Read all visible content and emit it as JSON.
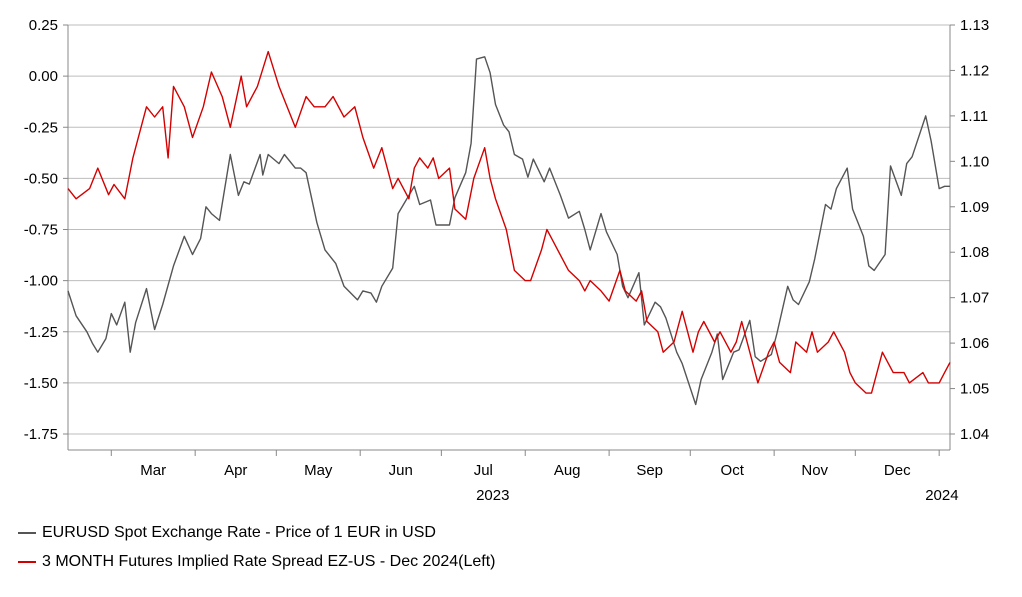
{
  "chart_data": {
    "type": "line",
    "title": "",
    "grid": true,
    "legend_placement": "bottom-left",
    "x_axis": {
      "months": [
        "Mar",
        "Apr",
        "May",
        "Jun",
        "Jul",
        "Aug",
        "Sep",
        "Oct",
        "Nov",
        "Dec"
      ],
      "year_labels": [
        "2023",
        "2024"
      ],
      "range": [
        "2023-02-13",
        "2024-01-05"
      ]
    },
    "y_left": {
      "ylim": [
        -1.75,
        0.25
      ],
      "ticks": [
        "0.25",
        "0.00",
        "-0.25",
        "-0.50",
        "-0.75",
        "-1.00",
        "-1.25",
        "-1.50",
        "-1.75"
      ]
    },
    "y_right": {
      "ylim": [
        1.04,
        1.13
      ],
      "ticks": [
        "1.13",
        "1.12",
        "1.11",
        "1.10",
        "1.09",
        "1.08",
        "1.07",
        "1.06",
        "1.05",
        "1.04"
      ]
    },
    "series": [
      {
        "name": "EURUSD Spot Exchange Rate - Price of 1 EUR in USD",
        "axis": "right",
        "color": "#555555",
        "points": [
          [
            "2023-02-13",
            1.0715
          ],
          [
            "2023-02-16",
            1.066
          ],
          [
            "2023-02-20",
            1.0625
          ],
          [
            "2023-02-22",
            1.06
          ],
          [
            "2023-02-24",
            1.058
          ],
          [
            "2023-02-27",
            1.061
          ],
          [
            "2023-03-01",
            1.0665
          ],
          [
            "2023-03-03",
            1.064
          ],
          [
            "2023-03-06",
            1.069
          ],
          [
            "2023-03-08",
            1.058
          ],
          [
            "2023-03-10",
            1.0645
          ],
          [
            "2023-03-14",
            1.072
          ],
          [
            "2023-03-17",
            1.063
          ],
          [
            "2023-03-20",
            1.0685
          ],
          [
            "2023-03-24",
            1.077
          ],
          [
            "2023-03-28",
            1.0835
          ],
          [
            "2023-03-31",
            1.0795
          ],
          [
            "2023-04-03",
            1.083
          ],
          [
            "2023-04-05",
            1.09
          ],
          [
            "2023-04-07",
            1.0885
          ],
          [
            "2023-04-10",
            1.087
          ],
          [
            "2023-04-14",
            1.1015
          ],
          [
            "2023-04-17",
            1.0925
          ],
          [
            "2023-04-19",
            1.0955
          ],
          [
            "2023-04-21",
            1.095
          ],
          [
            "2023-04-25",
            1.1015
          ],
          [
            "2023-04-26",
            1.097
          ],
          [
            "2023-04-28",
            1.1015
          ],
          [
            "2023-05-02",
            1.0995
          ],
          [
            "2023-05-04",
            1.1015
          ],
          [
            "2023-05-08",
            1.0985
          ],
          [
            "2023-05-10",
            1.0985
          ],
          [
            "2023-05-12",
            1.0975
          ],
          [
            "2023-05-16",
            1.0865
          ],
          [
            "2023-05-19",
            1.0805
          ],
          [
            "2023-05-23",
            1.0775
          ],
          [
            "2023-05-26",
            1.0725
          ],
          [
            "2023-05-31",
            1.0695
          ],
          [
            "2023-06-02",
            1.0715
          ],
          [
            "2023-06-05",
            1.071
          ],
          [
            "2023-06-07",
            1.069
          ],
          [
            "2023-06-09",
            1.0725
          ],
          [
            "2023-06-13",
            1.0765
          ],
          [
            "2023-06-15",
            1.0885
          ],
          [
            "2023-06-19",
            1.0925
          ],
          [
            "2023-06-21",
            1.0945
          ],
          [
            "2023-06-23",
            1.0905
          ],
          [
            "2023-06-27",
            1.0915
          ],
          [
            "2023-06-29",
            1.086
          ],
          [
            "2023-06-30",
            1.086
          ],
          [
            "2023-07-04",
            1.086
          ],
          [
            "2023-07-06",
            1.092
          ],
          [
            "2023-07-10",
            1.0975
          ],
          [
            "2023-07-12",
            1.104
          ],
          [
            "2023-07-14",
            1.1225
          ],
          [
            "2023-07-17",
            1.123
          ],
          [
            "2023-07-19",
            1.1195
          ],
          [
            "2023-07-21",
            1.1125
          ],
          [
            "2023-07-24",
            1.108
          ],
          [
            "2023-07-26",
            1.1065
          ],
          [
            "2023-07-28",
            1.1015
          ],
          [
            "2023-07-31",
            1.1005
          ],
          [
            "2023-08-02",
            1.0965
          ],
          [
            "2023-08-04",
            1.1005
          ],
          [
            "2023-08-08",
            1.0955
          ],
          [
            "2023-08-10",
            1.0985
          ],
          [
            "2023-08-14",
            1.0925
          ],
          [
            "2023-08-17",
            1.0875
          ],
          [
            "2023-08-21",
            1.089
          ],
          [
            "2023-08-23",
            1.085
          ],
          [
            "2023-08-25",
            1.0805
          ],
          [
            "2023-08-29",
            1.0885
          ],
          [
            "2023-08-31",
            1.0845
          ],
          [
            "2023-09-04",
            1.0795
          ],
          [
            "2023-09-06",
            1.0725
          ],
          [
            "2023-09-08",
            1.07
          ],
          [
            "2023-09-12",
            1.0755
          ],
          [
            "2023-09-14",
            1.064
          ],
          [
            "2023-09-18",
            1.069
          ],
          [
            "2023-09-20",
            1.068
          ],
          [
            "2023-09-22",
            1.0655
          ],
          [
            "2023-09-26",
            1.058
          ],
          [
            "2023-09-28",
            1.0555
          ],
          [
            "2023-10-03",
            1.0465
          ],
          [
            "2023-10-05",
            1.052
          ],
          [
            "2023-10-09",
            1.058
          ],
          [
            "2023-10-11",
            1.062
          ],
          [
            "2023-10-13",
            1.052
          ],
          [
            "2023-10-17",
            1.058
          ],
          [
            "2023-10-19",
            1.0585
          ],
          [
            "2023-10-23",
            1.065
          ],
          [
            "2023-10-25",
            1.057
          ],
          [
            "2023-10-27",
            1.056
          ],
          [
            "2023-10-31",
            1.0575
          ],
          [
            "2023-11-02",
            1.062
          ],
          [
            "2023-11-06",
            1.0725
          ],
          [
            "2023-11-08",
            1.0695
          ],
          [
            "2023-11-10",
            1.0685
          ],
          [
            "2023-11-14",
            1.0735
          ],
          [
            "2023-11-16",
            1.0785
          ],
          [
            "2023-11-20",
            1.0905
          ],
          [
            "2023-11-22",
            1.0895
          ],
          [
            "2023-11-24",
            1.094
          ],
          [
            "2023-11-28",
            1.0985
          ],
          [
            "2023-11-30",
            1.0895
          ],
          [
            "2023-12-04",
            1.0835
          ],
          [
            "2023-12-06",
            1.077
          ],
          [
            "2023-12-08",
            1.076
          ],
          [
            "2023-12-12",
            1.0795
          ],
          [
            "2023-12-14",
            1.099
          ],
          [
            "2023-12-18",
            1.0925
          ],
          [
            "2023-12-20",
            1.0995
          ],
          [
            "2023-12-22",
            1.101
          ],
          [
            "2023-12-27",
            1.11
          ],
          [
            "2023-12-29",
            1.1045
          ],
          [
            "2024-01-01",
            1.094
          ],
          [
            "2024-01-03",
            1.0945
          ],
          [
            "2024-01-05",
            1.0945
          ]
        ]
      },
      {
        "name": "3 MONTH Futures Implied Rate Spread EZ-US - Dec 2024(Left)",
        "axis": "left",
        "color": "#d40000",
        "points": [
          [
            "2023-02-13",
            -0.55
          ],
          [
            "2023-02-16",
            -0.6
          ],
          [
            "2023-02-21",
            -0.55
          ],
          [
            "2023-02-24",
            -0.45
          ],
          [
            "2023-02-28",
            -0.58
          ],
          [
            "2023-03-02",
            -0.53
          ],
          [
            "2023-03-06",
            -0.6
          ],
          [
            "2023-03-09",
            -0.4
          ],
          [
            "2023-03-14",
            -0.15
          ],
          [
            "2023-03-17",
            -0.2
          ],
          [
            "2023-03-20",
            -0.15
          ],
          [
            "2023-03-22",
            -0.4
          ],
          [
            "2023-03-24",
            -0.05
          ],
          [
            "2023-03-28",
            -0.15
          ],
          [
            "2023-03-31",
            -0.3
          ],
          [
            "2023-04-04",
            -0.15
          ],
          [
            "2023-04-07",
            0.02
          ],
          [
            "2023-04-11",
            -0.1
          ],
          [
            "2023-04-14",
            -0.25
          ],
          [
            "2023-04-18",
            0.0
          ],
          [
            "2023-04-20",
            -0.15
          ],
          [
            "2023-04-24",
            -0.05
          ],
          [
            "2023-04-28",
            0.12
          ],
          [
            "2023-05-02",
            -0.05
          ],
          [
            "2023-05-05",
            -0.15
          ],
          [
            "2023-05-08",
            -0.25
          ],
          [
            "2023-05-12",
            -0.1
          ],
          [
            "2023-05-15",
            -0.15
          ],
          [
            "2023-05-19",
            -0.15
          ],
          [
            "2023-05-22",
            -0.1
          ],
          [
            "2023-05-26",
            -0.2
          ],
          [
            "2023-05-30",
            -0.15
          ],
          [
            "2023-06-02",
            -0.3
          ],
          [
            "2023-06-06",
            -0.45
          ],
          [
            "2023-06-09",
            -0.35
          ],
          [
            "2023-06-13",
            -0.55
          ],
          [
            "2023-06-15",
            -0.5
          ],
          [
            "2023-06-19",
            -0.6
          ],
          [
            "2023-06-21",
            -0.45
          ],
          [
            "2023-06-23",
            -0.4
          ],
          [
            "2023-06-26",
            -0.45
          ],
          [
            "2023-06-28",
            -0.4
          ],
          [
            "2023-06-30",
            -0.5
          ],
          [
            "2023-07-04",
            -0.45
          ],
          [
            "2023-07-06",
            -0.65
          ],
          [
            "2023-07-10",
            -0.7
          ],
          [
            "2023-07-13",
            -0.5
          ],
          [
            "2023-07-17",
            -0.35
          ],
          [
            "2023-07-19",
            -0.5
          ],
          [
            "2023-07-21",
            -0.6
          ],
          [
            "2023-07-25",
            -0.75
          ],
          [
            "2023-07-28",
            -0.95
          ],
          [
            "2023-08-01",
            -1.0
          ],
          [
            "2023-08-03",
            -1.0
          ],
          [
            "2023-08-07",
            -0.85
          ],
          [
            "2023-08-09",
            -0.75
          ],
          [
            "2023-08-11",
            -0.8
          ],
          [
            "2023-08-15",
            -0.9
          ],
          [
            "2023-08-17",
            -0.95
          ],
          [
            "2023-08-21",
            -1.0
          ],
          [
            "2023-08-23",
            -1.05
          ],
          [
            "2023-08-25",
            -1.0
          ],
          [
            "2023-08-29",
            -1.05
          ],
          [
            "2023-09-01",
            -1.1
          ],
          [
            "2023-09-05",
            -0.95
          ],
          [
            "2023-09-07",
            -1.05
          ],
          [
            "2023-09-11",
            -1.1
          ],
          [
            "2023-09-13",
            -1.05
          ],
          [
            "2023-09-15",
            -1.2
          ],
          [
            "2023-09-19",
            -1.25
          ],
          [
            "2023-09-21",
            -1.35
          ],
          [
            "2023-09-25",
            -1.3
          ],
          [
            "2023-09-28",
            -1.15
          ],
          [
            "2023-10-02",
            -1.35
          ],
          [
            "2023-10-04",
            -1.25
          ],
          [
            "2023-10-06",
            -1.2
          ],
          [
            "2023-10-10",
            -1.3
          ],
          [
            "2023-10-12",
            -1.25
          ],
          [
            "2023-10-16",
            -1.35
          ],
          [
            "2023-10-18",
            -1.3
          ],
          [
            "2023-10-20",
            -1.2
          ],
          [
            "2023-10-24",
            -1.4
          ],
          [
            "2023-10-26",
            -1.5
          ],
          [
            "2023-10-30",
            -1.35
          ],
          [
            "2023-11-01",
            -1.3
          ],
          [
            "2023-11-03",
            -1.4
          ],
          [
            "2023-11-07",
            -1.45
          ],
          [
            "2023-11-09",
            -1.3
          ],
          [
            "2023-11-13",
            -1.35
          ],
          [
            "2023-11-15",
            -1.25
          ],
          [
            "2023-11-17",
            -1.35
          ],
          [
            "2023-11-21",
            -1.3
          ],
          [
            "2023-11-23",
            -1.25
          ],
          [
            "2023-11-27",
            -1.35
          ],
          [
            "2023-11-29",
            -1.45
          ],
          [
            "2023-12-01",
            -1.5
          ],
          [
            "2023-12-05",
            -1.55
          ],
          [
            "2023-12-07",
            -1.55
          ],
          [
            "2023-12-11",
            -1.35
          ],
          [
            "2023-12-13",
            -1.4
          ],
          [
            "2023-12-15",
            -1.45
          ],
          [
            "2023-12-19",
            -1.45
          ],
          [
            "2023-12-21",
            -1.5
          ],
          [
            "2023-12-26",
            -1.45
          ],
          [
            "2023-12-28",
            -1.5
          ],
          [
            "2024-01-01",
            -1.5
          ],
          [
            "2024-01-03",
            -1.45
          ],
          [
            "2024-01-05",
            -1.4
          ]
        ]
      }
    ]
  }
}
